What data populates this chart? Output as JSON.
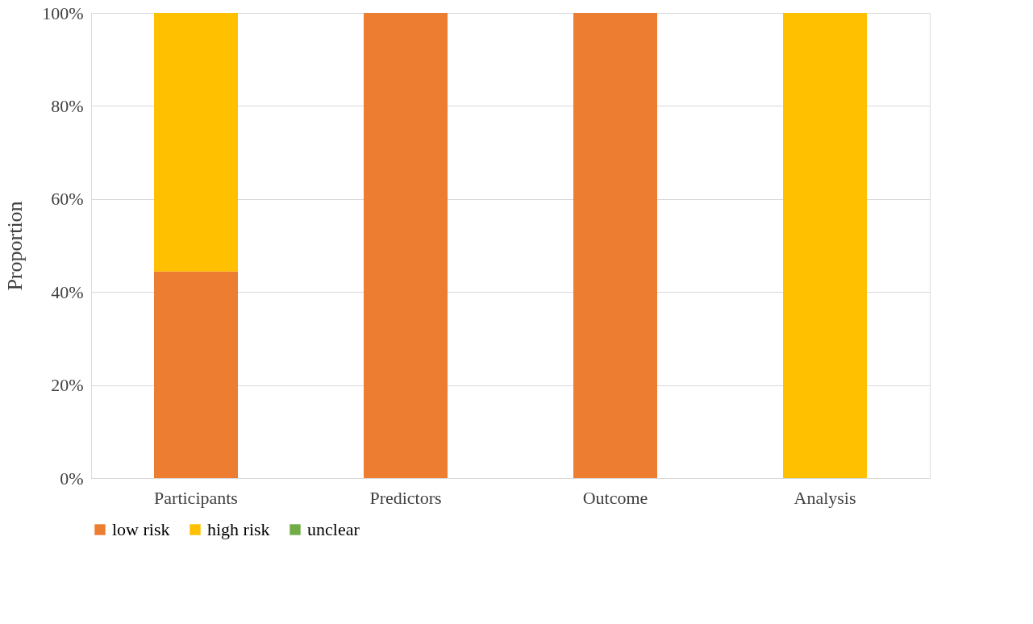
{
  "chart_data": {
    "type": "bar",
    "stacked": true,
    "ylabel": "Proportion",
    "categories": [
      "Participants",
      "Predictors",
      "Outcome",
      "Analysis"
    ],
    "series": [
      {
        "name": "low risk",
        "color": "#ed7d31",
        "values": [
          44.4,
          100,
          100,
          0
        ]
      },
      {
        "name": "high risk",
        "color": "#ffc000",
        "values": [
          55.6,
          0,
          0,
          100
        ]
      },
      {
        "name": "unclear",
        "color": "#70ad47",
        "values": [
          0,
          0,
          0,
          0
        ]
      }
    ],
    "ylim": [
      0,
      100
    ],
    "yticks": [
      {
        "value": 0,
        "label": "0%"
      },
      {
        "value": 20,
        "label": "20%"
      },
      {
        "value": 40,
        "label": "40%"
      },
      {
        "value": 60,
        "label": "60%"
      },
      {
        "value": 80,
        "label": "80%"
      },
      {
        "value": 100,
        "label": "100%"
      }
    ],
    "grid": "y",
    "legend": "bottom"
  }
}
